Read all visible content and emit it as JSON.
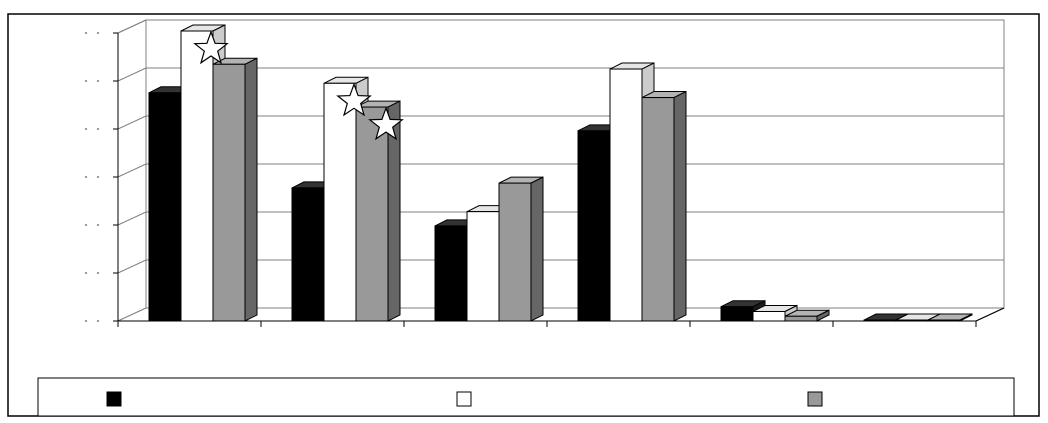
{
  "chart_data": {
    "type": "bar",
    "categories": [
      "",
      "",
      "",
      "",
      "",
      ""
    ],
    "series": [
      {
        "values": [
          4.8,
          2.8,
          2.0,
          4.0,
          0.3,
          0.02
        ]
      },
      {
        "values": [
          6.1,
          5.0,
          2.3,
          5.3,
          0.2,
          0.02
        ]
      },
      {
        "values": [
          5.4,
          4.5,
          2.9,
          4.7,
          0.1,
          0.02
        ]
      }
    ],
    "ylim": [
      0,
      6.1
    ],
    "gridlines": 6,
    "markers": [
      {
        "series": 1,
        "category": 0,
        "symbol": "star"
      },
      {
        "series": 1,
        "category": 1,
        "symbol": "star"
      },
      {
        "series": 2,
        "category": 1,
        "symbol": "star"
      }
    ],
    "legend": {
      "position": "bottom"
    },
    "colors": {
      "series": [
        "#000000",
        "#ffffff",
        "#999999"
      ],
      "series_top": [
        "#333333",
        "#e6e6e6",
        "#b3b3b3"
      ],
      "series_side": [
        "#1a1a1a",
        "#cccccc",
        "#666666"
      ],
      "wall": "#ffffff",
      "grid": "#808080"
    }
  }
}
